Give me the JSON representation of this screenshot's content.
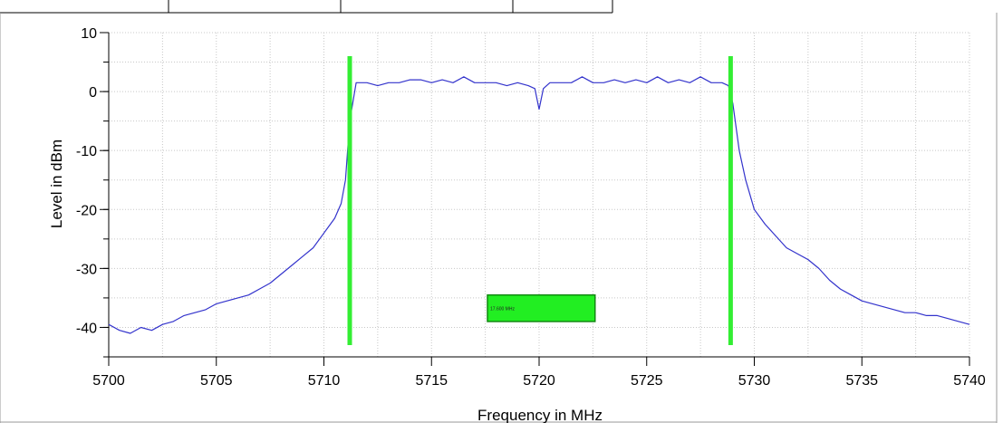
{
  "chart_data": {
    "type": "line",
    "xlabel": "Frequency in MHz",
    "ylabel": "Level in dBm",
    "xlim": [
      5700,
      5740
    ],
    "ylim": [
      -45,
      10
    ],
    "x_ticks": [
      5700,
      5705,
      5710,
      5715,
      5720,
      5725,
      5730,
      5735,
      5740
    ],
    "y_ticks": [
      10,
      0,
      -10,
      -20,
      -30,
      -40
    ],
    "x_tick_labels": [
      "5700",
      "5705",
      "5710",
      "5715",
      "5720",
      "5725",
      "5730",
      "5735",
      "5740"
    ],
    "y_tick_labels": [
      "10",
      "0",
      "-10",
      "-20",
      "-30",
      "-40"
    ],
    "grid": true,
    "line_color": "#3333cc",
    "marker_color": "#33ee33",
    "markers": [
      {
        "x": 5711.2,
        "y_top": 6,
        "y_bottom": -43
      },
      {
        "x": 5728.9,
        "y_top": 6,
        "y_bottom": -43
      }
    ],
    "annotation": {
      "text": "17.600 MHz",
      "x_start": 5717.6,
      "x_end": 5722.6,
      "y_top": -34.5,
      "y_bottom": -39
    },
    "series": [
      {
        "x": [
          5700,
          5700.5,
          5701,
          5701.5,
          5702,
          5702.5,
          5703,
          5703.5,
          5704,
          5704.5,
          5705,
          5705.5,
          5706,
          5706.5,
          5707,
          5707.5,
          5708,
          5708.5,
          5709,
          5709.5,
          5710,
          5710.5,
          5710.8,
          5711,
          5711.2,
          5711.5,
          5712,
          5712.5,
          5713,
          5713.5,
          5714,
          5714.5,
          5715,
          5715.5,
          5716,
          5716.5,
          5717,
          5717.5,
          5718,
          5718.5,
          5719,
          5719.5,
          5719.8,
          5720,
          5720.2,
          5720.5,
          5721,
          5721.5,
          5722,
          5722.5,
          5723,
          5723.5,
          5724,
          5724.5,
          5725,
          5725.5,
          5726,
          5726.5,
          5727,
          5727.5,
          5728,
          5728.5,
          5728.8,
          5729,
          5729.3,
          5729.6,
          5730,
          5730.5,
          5731,
          5731.5,
          5732,
          5732.5,
          5733,
          5733.5,
          5734,
          5734.5,
          5735,
          5735.5,
          5736,
          5736.5,
          5737,
          5737.5,
          5738,
          5738.5,
          5739,
          5739.5,
          5740
        ],
        "y": [
          -39.5,
          -40.5,
          -41,
          -40,
          -40.5,
          -39.5,
          -39,
          -38,
          -37.5,
          -37,
          -36,
          -35.5,
          -35,
          -34.5,
          -33.5,
          -32.5,
          -31,
          -29.5,
          -28,
          -26.5,
          -24,
          -21.5,
          -19,
          -15,
          -5,
          1.5,
          1.5,
          1,
          1.5,
          1.5,
          2,
          2,
          1.5,
          2,
          1.5,
          2.5,
          1.5,
          1.5,
          1.5,
          1,
          1.5,
          1,
          0.5,
          -3,
          0.5,
          1.5,
          1.5,
          1.5,
          2.5,
          1.5,
          1.5,
          2,
          1.5,
          2,
          1.5,
          2.5,
          1.5,
          2,
          1.5,
          2.5,
          1.5,
          1.5,
          1,
          -2,
          -10,
          -15,
          -20,
          -22.5,
          -24.5,
          -26.5,
          -27.5,
          -28.5,
          -30,
          -32,
          -33.5,
          -34.5,
          -35.5,
          -36,
          -36.5,
          -37,
          -37.5,
          -37.5,
          -38,
          -38,
          -38.5,
          -39,
          -39.5
        ]
      }
    ]
  }
}
